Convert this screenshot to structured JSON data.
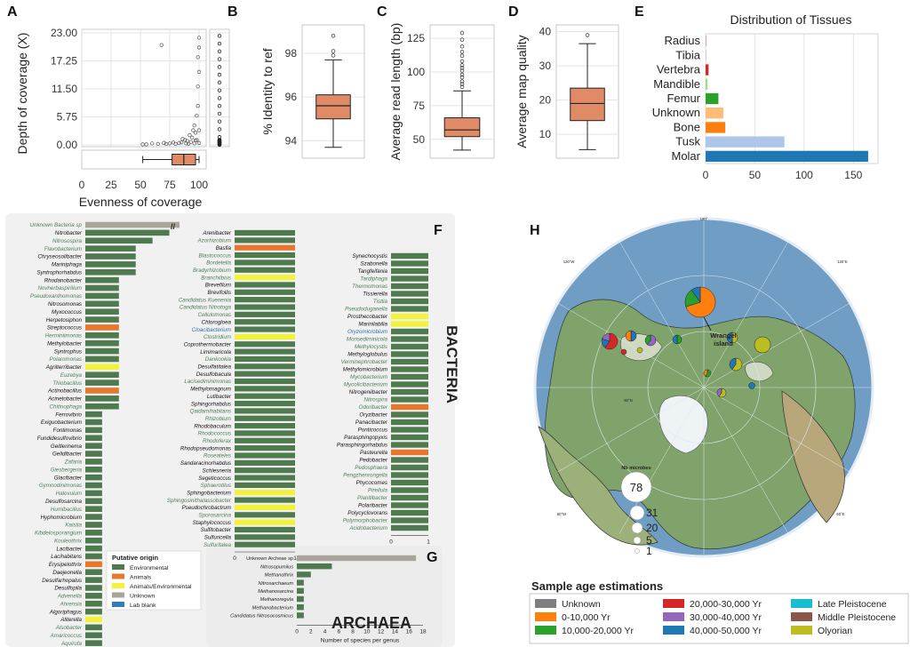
{
  "panel_letters": [
    "A",
    "B",
    "C",
    "D",
    "E",
    "F",
    "G",
    "H"
  ],
  "chart_data": [
    {
      "id": "A",
      "type": "scatter",
      "xlabel": "Evenness of coverage",
      "ylabel": "Depth of coverage (X)",
      "xticks": [
        "0",
        "25",
        "50",
        "75",
        "100"
      ],
      "yticks": [
        "23.00",
        "17.25",
        "11.50",
        "5.75",
        "0.00"
      ],
      "xlim": [
        0,
        100
      ],
      "ylim": [
        0,
        23
      ],
      "points": [
        [
          68,
          20.5
        ],
        [
          72,
          0.2
        ],
        [
          85,
          0.5
        ],
        [
          88,
          1
        ],
        [
          90,
          0.8
        ],
        [
          92,
          2
        ],
        [
          94,
          1.5
        ],
        [
          95,
          3
        ],
        [
          96,
          4
        ],
        [
          97,
          2.5
        ],
        [
          98,
          6
        ],
        [
          98,
          1
        ],
        [
          99,
          8
        ],
        [
          99,
          12
        ],
        [
          100,
          3
        ],
        [
          100,
          15
        ],
        [
          100,
          20
        ],
        [
          100,
          0.4
        ],
        [
          96,
          0.3
        ],
        [
          93,
          0.6
        ],
        [
          89,
          0.3
        ],
        [
          86,
          1.2
        ],
        [
          83,
          0.4
        ],
        [
          80,
          0.2
        ],
        [
          78,
          0.5
        ],
        [
          75,
          0.3
        ],
        [
          70,
          0.4
        ],
        [
          65,
          0.2
        ],
        [
          60,
          0.3
        ],
        [
          55,
          0.1
        ],
        [
          52,
          0.1
        ],
        [
          99,
          18
        ],
        [
          100,
          22
        ],
        [
          97,
          0.9
        ],
        [
          91,
          0.2
        ]
      ],
      "x_box": {
        "whisker_low": 52,
        "q1": 77,
        "median": 87,
        "q3": 97,
        "whisker_high": 100
      }
    },
    {
      "id": "B",
      "type": "box",
      "ylabel": "% Identity to ref",
      "yticks": [
        "98",
        "96",
        "94"
      ],
      "ylim": [
        93.2,
        99.3
      ],
      "box": {
        "whisker_low": 93.7,
        "q1": 95.0,
        "median": 95.6,
        "q3": 96.1,
        "whisker_high": 97.7,
        "outliers": [
          97.9,
          98.1,
          98.8
        ]
      }
    },
    {
      "id": "C",
      "type": "box",
      "ylabel": "Average read length (bp)",
      "yticks": [
        "125",
        "100",
        "75",
        "50"
      ],
      "ylim": [
        36,
        135
      ],
      "box": {
        "whisker_low": 42,
        "q1": 52,
        "median": 57,
        "q3": 66,
        "whisker_high": 86,
        "outliers": [
          89,
          91,
          93,
          96,
          98,
          101,
          103,
          105,
          108,
          112,
          115,
          119,
          124,
          129
        ]
      }
    },
    {
      "id": "D",
      "type": "box",
      "ylabel": "Average map quality",
      "yticks": [
        "40",
        "30",
        "20",
        "10"
      ],
      "ylim": [
        3,
        42
      ],
      "box": {
        "whisker_low": 5.5,
        "q1": 14,
        "median": 19,
        "q3": 23.5,
        "whisker_high": 36.5,
        "outliers": [
          39
        ]
      }
    },
    {
      "id": "E",
      "type": "bar",
      "title": "Distribution of Tissues",
      "xticks": [
        "0",
        "50",
        "100",
        "150"
      ],
      "xlim": [
        0,
        175
      ],
      "categories": [
        "Radius",
        "Tibia",
        "Vertebra",
        "Mandible",
        "Femur",
        "Unknown",
        "Bone",
        "Tusk",
        "Molar"
      ],
      "values": [
        1,
        1,
        3,
        2,
        13,
        18,
        20,
        80,
        165
      ],
      "colors": [
        "#e7a1c6",
        "#d4d4d4",
        "#d62728",
        "#98df8a",
        "#2ca02c",
        "#ffbb78",
        "#ff7f0e",
        "#aec7e8",
        "#1f77b4"
      ]
    },
    {
      "id": "F",
      "type": "bar",
      "side_label": "BACTERIA",
      "xlabel": "Number of species per genus",
      "col1_xticks": [
        "0",
        "1",
        "2",
        "3",
        "4",
        "5",
        "116"
      ],
      "col1_xlim": [
        0,
        5.5
      ],
      "col1": [
        [
          "Unknown Bacteria sp",
          116,
          "u",
          1
        ],
        [
          "Nitrobacter",
          5,
          "e",
          0
        ],
        [
          "Nitrosospira",
          4,
          "e",
          1
        ],
        [
          "Flavobacterium",
          3,
          "e",
          1
        ],
        [
          "Chryseosolibacter",
          3,
          "e",
          0
        ],
        [
          "Mariniphaga",
          3,
          "e",
          0
        ],
        [
          "Syntrophorhabdus",
          3,
          "e",
          0
        ],
        [
          "Rhodanobacter",
          2,
          "e",
          0
        ],
        [
          "Novherbaspirillum",
          2,
          "e",
          1
        ],
        [
          "Pseudoxanthomonas",
          2,
          "e",
          1
        ],
        [
          "Nitrosomonas",
          2,
          "e",
          0
        ],
        [
          "Myxococcus",
          2,
          "e",
          0
        ],
        [
          "Herpetosiphon",
          2,
          "e",
          0
        ],
        [
          "Streptococcus",
          2,
          "a",
          0
        ],
        [
          "Herminiimonas",
          2,
          "e",
          1
        ],
        [
          "Methylobacter",
          2,
          "e",
          0
        ],
        [
          "Syntrophus",
          2,
          "e",
          0
        ],
        [
          "Polaromonas",
          2,
          "e",
          1
        ],
        [
          "Agrilterribacter",
          2,
          "ae",
          0
        ],
        [
          "Euzebya",
          2,
          "e",
          1
        ],
        [
          "Thiobacillus",
          2,
          "e",
          1
        ],
        [
          "Actinobacillus",
          2,
          "a",
          0
        ],
        [
          "Acinetobacter",
          2,
          "e",
          0
        ],
        [
          "Chitinophaga",
          2,
          "e",
          1
        ],
        [
          "Ferrovibrio",
          1,
          "e",
          0
        ],
        [
          "Exiguobacterium",
          1,
          "e",
          0
        ],
        [
          "Fontimonas",
          1,
          "e",
          0
        ],
        [
          "Fundidesulfovibrio",
          1,
          "e",
          0
        ],
        [
          "Geitlerinema",
          1,
          "e",
          0
        ],
        [
          "Gelidibacter",
          1,
          "e",
          0
        ],
        [
          "Zafaria",
          1,
          "e",
          1
        ],
        [
          "Giesbergeria",
          1,
          "e",
          1
        ],
        [
          "Glacibacter",
          1,
          "e",
          0
        ],
        [
          "Gymnodinimonas",
          1,
          "e",
          1
        ],
        [
          "Halovulum",
          1,
          "e",
          1
        ],
        [
          "Desulfosarcina",
          1,
          "e",
          0
        ],
        [
          "Humibacillus",
          1,
          "e",
          1
        ],
        [
          "Hyphomicrobium",
          1,
          "e",
          0
        ],
        [
          "Kaistia",
          1,
          "e",
          1
        ],
        [
          "Kibdelosporangium",
          1,
          "e",
          1
        ],
        [
          "Kouleothrix",
          1,
          "e",
          1
        ],
        [
          "Lacibacter",
          1,
          "e",
          0
        ],
        [
          "Lacihabitans",
          1,
          "e",
          0
        ],
        [
          "Erysipelothrix",
          1,
          "a",
          0
        ],
        [
          "Daejeonella",
          1,
          "e",
          0
        ],
        [
          "Desulfarhopalus",
          1,
          "e",
          0
        ],
        [
          "Desulfopila",
          1,
          "e",
          0
        ],
        [
          "Advenella",
          1,
          "e",
          1
        ],
        [
          "Ahrensia",
          1,
          "e",
          1
        ],
        [
          "Algoriphagus",
          1,
          "e",
          0
        ],
        [
          "Aliterella",
          1,
          "ae",
          0
        ],
        [
          "Alsobacter",
          1,
          "e",
          1
        ],
        [
          "Amaricoccus",
          1,
          "e",
          1
        ],
        [
          "Aquirufa",
          1,
          "e",
          1
        ]
      ],
      "col2": [
        [
          "Arenibacter",
          1,
          "e",
          0
        ],
        [
          "Azorhizobium",
          1,
          "e",
          1
        ],
        [
          "Basfia",
          1,
          "a",
          0
        ],
        [
          "Blastococcus",
          1,
          "e",
          1
        ],
        [
          "Bordetella",
          1,
          "e",
          1
        ],
        [
          "Bradyrhizobium",
          1,
          "e",
          1
        ],
        [
          "Branchiibius",
          1,
          "ae",
          1
        ],
        [
          "Brevefilum",
          1,
          "e",
          0
        ],
        [
          "Brevifollis",
          1,
          "e",
          0
        ],
        [
          "Candidatus Kuenenia",
          1,
          "e",
          1
        ],
        [
          "Candidatus Nitrotoga",
          1,
          "e",
          1
        ],
        [
          "Cellulomonas",
          1,
          "e",
          1
        ],
        [
          "Chlorogloea",
          1,
          "e",
          0
        ],
        [
          "Cloacibacterium",
          1,
          "e",
          2
        ],
        [
          "Clostridium",
          1,
          "ae",
          1
        ],
        [
          "Coprothermobacter",
          1,
          "e",
          0
        ],
        [
          "Limimaricola",
          1,
          "e",
          0
        ],
        [
          "Dankookia",
          1,
          "e",
          1
        ],
        [
          "Desulfatitalea",
          1,
          "e",
          0
        ],
        [
          "Desulfobacula",
          1,
          "e",
          0
        ],
        [
          "Lacisediminimonas",
          1,
          "e",
          1
        ],
        [
          "Methylomagnum",
          1,
          "e",
          0
        ],
        [
          "Lutibacter",
          1,
          "e",
          0
        ],
        [
          "Sphingorhabdus",
          1,
          "e",
          0
        ],
        [
          "Qaidamihabitans",
          1,
          "e",
          1
        ],
        [
          "Rhizobium",
          1,
          "e",
          1
        ],
        [
          "Rhodobaculum",
          1,
          "e",
          0
        ],
        [
          "Rhodococcus",
          1,
          "e",
          1
        ],
        [
          "Rhodoferax",
          1,
          "e",
          1
        ],
        [
          "Rhodopseudomonas",
          1,
          "e",
          0
        ],
        [
          "Roseateles",
          1,
          "e",
          1
        ],
        [
          "Sandaracinorhabdus",
          1,
          "e",
          0
        ],
        [
          "Schlesneria",
          1,
          "e",
          0
        ],
        [
          "Segeticoccus",
          1,
          "e",
          0
        ],
        [
          "Sphaerotilus",
          1,
          "e",
          1
        ],
        [
          "Sphingobacterium",
          1,
          "ae",
          0
        ],
        [
          "Sphingosinithalassobacter",
          1,
          "e",
          1
        ],
        [
          "Pseudochrobactrum",
          1,
          "ae",
          0
        ],
        [
          "Sporosarcina",
          1,
          "e",
          1
        ],
        [
          "Staphylococcus",
          1,
          "ae",
          0
        ],
        [
          "Sulfitobacter",
          1,
          "e",
          0
        ],
        [
          "Sulfuricella",
          1,
          "e",
          0
        ],
        [
          "Sulfuritalea",
          1,
          "e",
          1
        ]
      ],
      "col3": [
        [
          "Synechocystis",
          1,
          "e",
          0
        ],
        [
          "Szabonella",
          1,
          "e",
          0
        ],
        [
          "Tangfeifania",
          1,
          "e",
          0
        ],
        [
          "Tardiphaga",
          1,
          "e",
          1
        ],
        [
          "Thermomonas",
          1,
          "e",
          1
        ],
        [
          "Tissierella",
          1,
          "e",
          0
        ],
        [
          "Tistlia",
          1,
          "e",
          1
        ],
        [
          "Pseudoduganella",
          1,
          "e",
          1
        ],
        [
          "Prosthecobacter",
          1,
          "ae",
          0
        ],
        [
          "Marinilabilia",
          1,
          "ae",
          0
        ],
        [
          "Oryzomicrobium",
          1,
          "e",
          2
        ],
        [
          "Morisediminicola",
          1,
          "e",
          1
        ],
        [
          "Methylocystis",
          1,
          "e",
          1
        ],
        [
          "Methyloglobulus",
          1,
          "e",
          0
        ],
        [
          "Verminephrobacter",
          1,
          "e",
          1
        ],
        [
          "Methylomicrobium",
          1,
          "e",
          0
        ],
        [
          "Mycobacterium",
          1,
          "e",
          1
        ],
        [
          "Mycolicibacterium",
          1,
          "e",
          1
        ],
        [
          "Nitrogeniibacter",
          1,
          "e",
          0
        ],
        [
          "Nitrospira",
          1,
          "e",
          1
        ],
        [
          "Odoribacter",
          1,
          "a",
          1
        ],
        [
          "Oryzibacter",
          1,
          "e",
          0
        ],
        [
          "Panacibacter",
          1,
          "e",
          0
        ],
        [
          "Ponticoccus",
          1,
          "e",
          0
        ],
        [
          "Parasphingopyxis",
          1,
          "e",
          0
        ],
        [
          "Parasphingorhabdus",
          1,
          "e",
          0
        ],
        [
          "Pasteurella",
          1,
          "a",
          0
        ],
        [
          "Pedobacter",
          1,
          "e",
          0
        ],
        [
          "Pedosphaera",
          1,
          "e",
          1
        ],
        [
          "Pengzhenrongella",
          1,
          "e",
          1
        ],
        [
          "Phycocomes",
          1,
          "e",
          0
        ],
        [
          "Pirellula",
          1,
          "e",
          1
        ],
        [
          "Planitibacter",
          1,
          "e",
          1
        ],
        [
          "Polaribacter",
          1,
          "e",
          0
        ],
        [
          "Polycyclovorans",
          1,
          "e",
          0
        ],
        [
          "Polymorphobacter",
          1,
          "e",
          1
        ],
        [
          "Acidobacterium",
          1,
          "e",
          1
        ]
      ]
    },
    {
      "id": "G",
      "type": "bar",
      "side_label": "ARCHAEA",
      "xlabel": "Number of species per genus",
      "xticks": [
        "0",
        "2",
        "4",
        "6",
        "8",
        "10",
        "12",
        "14",
        "16",
        "18"
      ],
      "xlim": [
        0,
        18
      ],
      "categories": [
        "Unknown Archeae sp",
        "Nitrosopumilus",
        "Methanothrix",
        "Nitrosarchaeum",
        "Methanosarcina",
        "Methanoregula",
        "Methanobacterium",
        "Candidatus Nitrosocosmicus"
      ],
      "values": [
        17,
        5,
        2,
        1,
        1,
        1,
        1,
        1
      ],
      "origins": [
        "u",
        "e",
        "e",
        "e",
        "e",
        "e",
        "e",
        "e"
      ],
      "green_label": [
        0,
        1,
        0,
        0,
        1,
        0,
        0,
        1
      ]
    }
  ],
  "legend_f": {
    "title": "Putative origin",
    "items": [
      {
        "label": "Environmental",
        "color": "#4f7a4f"
      },
      {
        "label": "Animals",
        "color": "#e8772e"
      },
      {
        "label": "Animals/Environmental",
        "color": "#f2f23c"
      },
      {
        "label": "Unknown",
        "color": "#a9a59a"
      },
      {
        "label": "Lab blank",
        "color": "#2f7fbf"
      }
    ]
  },
  "map": {
    "site_label": "Wrangel island",
    "bubble_title": "Nb microbes",
    "bubble_sizes": [
      "78",
      "31",
      "20",
      "5",
      "1"
    ],
    "graticule_labels": [
      "180°",
      "120°W",
      "120°E",
      "60°N",
      "60°W",
      "60°E",
      "0°"
    ],
    "legend_title": "Sample age estimations",
    "age_items": [
      {
        "label": "Unknown",
        "color": "#7f7f7f"
      },
      {
        "label": "0-10,000 Yr",
        "color": "#ff7f0e"
      },
      {
        "label": "10,000-20,000 Yr",
        "color": "#2ca02c"
      },
      {
        "label": "20,000-30,000 Yr",
        "color": "#d62728"
      },
      {
        "label": "30,000-40,000 Yr",
        "color": "#9467bd"
      },
      {
        "label": "40,000-50,000 Yr",
        "color": "#1f77b4"
      },
      {
        "label": "Late Pleistocene",
        "color": "#17becf"
      },
      {
        "label": "Middle Pleistocene",
        "color": "#8c564b"
      },
      {
        "label": "Olyorian",
        "color": "#bcbd22"
      }
    ]
  },
  "colors": {
    "box": "#e08b66",
    "env": "#4f7a4f",
    "animals": "#e8772e",
    "animal_env": "#f2f23c",
    "unknown": "#a9a59a",
    "lab": "#2f7fbf",
    "green_text": "#4d7f5a",
    "blue_text": "#2f6fa8"
  }
}
